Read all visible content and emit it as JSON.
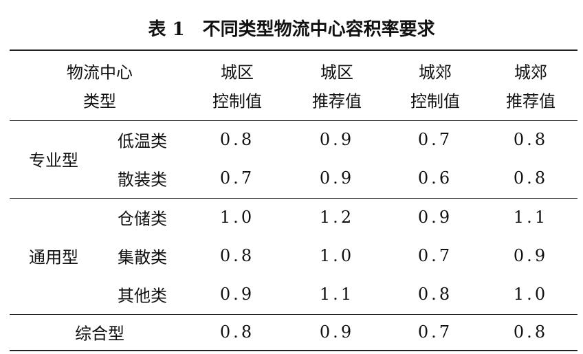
{
  "title": "表 1　不同类型物流中心容积率要求",
  "header": {
    "category": [
      "物流中心",
      "类型"
    ],
    "columns": [
      [
        "城区",
        "控制值"
      ],
      [
        "城区",
        "推荐值"
      ],
      [
        "城郊",
        "控制值"
      ],
      [
        "城郊",
        "推荐值"
      ]
    ]
  },
  "groups": [
    {
      "name": "专业型",
      "rows": [
        {
          "name": "低温类",
          "values": [
            "0.8",
            "0.9",
            "0.7",
            "0.8"
          ]
        },
        {
          "name": "散装类",
          "values": [
            "0.7",
            "0.9",
            "0.6",
            "0.8"
          ]
        }
      ]
    },
    {
      "name": "通用型",
      "rows": [
        {
          "name": "仓储类",
          "values": [
            "1.0",
            "1.2",
            "0.9",
            "1.1"
          ]
        },
        {
          "name": "集散类",
          "values": [
            "0.8",
            "1.0",
            "0.7",
            "0.9"
          ]
        },
        {
          "name": "其他类",
          "values": [
            "0.9",
            "1.1",
            "0.8",
            "1.0"
          ]
        }
      ]
    },
    {
      "name": "综合型",
      "values": [
        "0.8",
        "0.9",
        "0.7",
        "0.8"
      ]
    }
  ]
}
